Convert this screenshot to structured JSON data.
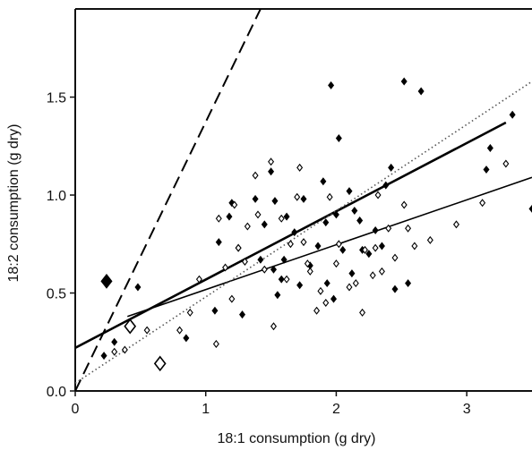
{
  "chart_data": {
    "type": "scatter",
    "xlabel": "18:1 consumption (g dry)",
    "ylabel": "18:2 consumption (g dry)",
    "xlim": [
      0,
      3.5
    ],
    "ylim": [
      0,
      1.95
    ],
    "x_ticks": [
      0,
      1,
      2,
      3
    ],
    "x_tick_labels": [
      "0",
      "1",
      "2",
      "3"
    ],
    "y_ticks": [
      0.0,
      0.5,
      1.0,
      1.5
    ],
    "y_tick_labels": [
      "0.0",
      "0.5",
      "1.0",
      "1.5"
    ],
    "grid": false,
    "colors": {
      "axis": "#111111",
      "marker": "#000000",
      "marker_fill_open": "#ffffff"
    },
    "series": [
      {
        "marker": "filled-diamond",
        "points": [
          [
            0.22,
            0.18
          ],
          [
            0.3,
            0.25
          ],
          [
            0.48,
            0.53
          ],
          [
            0.85,
            0.27
          ],
          [
            1.07,
            0.41
          ],
          [
            1.1,
            0.76
          ],
          [
            1.18,
            0.89
          ],
          [
            1.2,
            0.96
          ],
          [
            1.25,
            0.73
          ],
          [
            1.28,
            0.39
          ],
          [
            1.38,
            0.98
          ],
          [
            1.42,
            0.67
          ],
          [
            1.45,
            0.85
          ],
          [
            1.5,
            1.12
          ],
          [
            1.52,
            0.62
          ],
          [
            1.53,
            0.97
          ],
          [
            1.55,
            0.49
          ],
          [
            1.58,
            0.57
          ],
          [
            1.6,
            0.67
          ],
          [
            1.62,
            0.89
          ],
          [
            1.68,
            0.81
          ],
          [
            1.72,
            0.54
          ],
          [
            1.75,
            0.98
          ],
          [
            1.8,
            0.64
          ],
          [
            1.86,
            0.74
          ],
          [
            1.9,
            1.07
          ],
          [
            1.92,
            0.86
          ],
          [
            1.93,
            0.55
          ],
          [
            1.96,
            1.56
          ],
          [
            1.98,
            0.47
          ],
          [
            2.0,
            0.9
          ],
          [
            2.02,
            1.29
          ],
          [
            2.05,
            0.72
          ],
          [
            2.1,
            1.02
          ],
          [
            2.12,
            0.6
          ],
          [
            2.14,
            0.92
          ],
          [
            2.18,
            0.87
          ],
          [
            2.2,
            0.72
          ],
          [
            2.25,
            0.7
          ],
          [
            2.3,
            0.82
          ],
          [
            2.35,
            0.74
          ],
          [
            2.38,
            1.05
          ],
          [
            2.42,
            1.14
          ],
          [
            2.45,
            0.52
          ],
          [
            2.52,
            1.58
          ],
          [
            2.55,
            0.55
          ],
          [
            2.65,
            1.53
          ],
          [
            3.15,
            1.13
          ],
          [
            3.18,
            1.24
          ],
          [
            3.35,
            1.41
          ],
          [
            3.5,
            0.93
          ]
        ]
      },
      {
        "marker": "open-diamond",
        "points": [
          [
            0.3,
            0.2
          ],
          [
            0.38,
            0.21
          ],
          [
            0.55,
            0.31
          ],
          [
            0.8,
            0.31
          ],
          [
            0.88,
            0.4
          ],
          [
            0.95,
            0.57
          ],
          [
            1.08,
            0.24
          ],
          [
            1.1,
            0.88
          ],
          [
            1.15,
            0.63
          ],
          [
            1.2,
            0.47
          ],
          [
            1.22,
            0.95
          ],
          [
            1.25,
            0.73
          ],
          [
            1.3,
            0.66
          ],
          [
            1.32,
            0.84
          ],
          [
            1.38,
            1.1
          ],
          [
            1.4,
            0.9
          ],
          [
            1.45,
            0.62
          ],
          [
            1.5,
            1.17
          ],
          [
            1.52,
            0.33
          ],
          [
            1.58,
            0.88
          ],
          [
            1.62,
            0.57
          ],
          [
            1.65,
            0.75
          ],
          [
            1.7,
            0.99
          ],
          [
            1.72,
            1.14
          ],
          [
            1.75,
            0.76
          ],
          [
            1.78,
            0.65
          ],
          [
            1.8,
            0.61
          ],
          [
            1.85,
            0.41
          ],
          [
            1.88,
            0.51
          ],
          [
            1.92,
            0.45
          ],
          [
            1.95,
            0.99
          ],
          [
            2.0,
            0.65
          ],
          [
            2.02,
            0.75
          ],
          [
            2.1,
            0.53
          ],
          [
            2.15,
            0.55
          ],
          [
            2.2,
            0.4
          ],
          [
            2.22,
            0.72
          ],
          [
            2.28,
            0.59
          ],
          [
            2.3,
            0.73
          ],
          [
            2.32,
            1.0
          ],
          [
            2.35,
            0.61
          ],
          [
            2.4,
            0.83
          ],
          [
            2.45,
            0.68
          ],
          [
            2.52,
            0.95
          ],
          [
            2.55,
            0.83
          ],
          [
            2.6,
            0.74
          ],
          [
            2.72,
            0.77
          ],
          [
            2.92,
            0.85
          ],
          [
            3.12,
            0.96
          ],
          [
            3.3,
            1.16
          ]
        ]
      },
      {
        "marker": "large-filled-diamond",
        "points": [
          [
            0.24,
            0.56
          ]
        ]
      },
      {
        "marker": "large-open-diamond",
        "points": [
          [
            0.42,
            0.33
          ],
          [
            0.65,
            0.14
          ]
        ]
      }
    ],
    "lines": [
      {
        "style": "dashed",
        "x": [
          0,
          1.42
        ],
        "y": [
          0,
          1.95
        ]
      },
      {
        "style": "thick-solid",
        "x": [
          0,
          3.3
        ],
        "y": [
          0.22,
          1.37
        ]
      },
      {
        "style": "thin-solid",
        "x": [
          0.4,
          3.5
        ],
        "y": [
          0.38,
          1.09
        ]
      },
      {
        "style": "dotted",
        "x": [
          0,
          3.5
        ],
        "y": [
          0.04,
          1.58
        ]
      }
    ]
  }
}
